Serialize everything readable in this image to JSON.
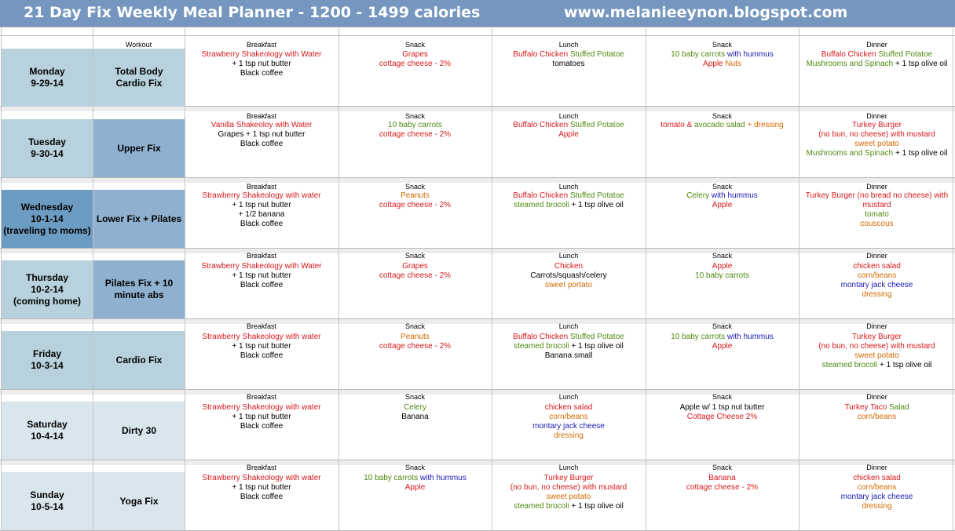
{
  "banner": {
    "title": "21 Day Fix Weekly Meal Planner - 1200 - 1499 calories",
    "url": "www.melanieeynon.blogspot.com"
  },
  "labels": {
    "workout": "Workout",
    "breakfast": "Breakfast",
    "snack": "Snack",
    "lunch": "Lunch",
    "dinner": "Dinner"
  },
  "colors": {
    "banner": "#7597bf",
    "red": "#d7191c",
    "green": "#4f8a10",
    "blue": "#1a1ab5",
    "orange": "#d46a00"
  },
  "days": [
    {
      "day": [
        "Monday",
        "9-29-14"
      ],
      "workout": [
        "Total Body",
        "Cardio Fix"
      ],
      "day_bg": "#b7d2dc",
      "workout_bg": "#b7d2dc",
      "breakfast": [
        [
          [
            "Strawberry Shakeology with Water",
            "r"
          ]
        ],
        [
          [
            "+ 1 tsp nut butter",
            "k"
          ]
        ],
        [
          [
            "Black coffee",
            "k"
          ]
        ]
      ],
      "snack1": [
        [
          [
            "Grapes",
            "r"
          ]
        ],
        [
          [
            "cottage cheese - 2%",
            "r"
          ]
        ]
      ],
      "lunch": [
        [
          [
            "Buffalo Chicken ",
            "r"
          ],
          [
            "Stuffed Potatoe",
            "g"
          ]
        ],
        [
          [
            "tomatoes",
            "k"
          ]
        ]
      ],
      "snack2": [
        [
          [
            "10 baby carrots ",
            "g"
          ],
          [
            "with hummus",
            "b"
          ]
        ],
        [
          [
            "Apple  ",
            "r"
          ],
          [
            "Nuts",
            "o"
          ]
        ]
      ],
      "dinner": [
        [
          [
            "Buffalo Chicken ",
            "r"
          ],
          [
            "Stuffed Potatoe",
            "g"
          ]
        ],
        [
          [
            "Mushrooms and Spinach",
            "g"
          ],
          [
            " + 1 tsp olive oil",
            "k"
          ]
        ]
      ]
    },
    {
      "day": [
        "Tuesday",
        "9-30-14"
      ],
      "workout": [
        "Upper Fix"
      ],
      "day_bg": "#b7d2dc",
      "workout_bg": "#8fb1cf",
      "breakfast": [
        [
          [
            "Vanilla Shakeoloy with Water",
            "r"
          ]
        ],
        [
          [
            "Grapes + 1 tsp nut butter",
            "k"
          ]
        ],
        [
          [
            "Black coffee",
            "k"
          ]
        ]
      ],
      "snack1": [
        [
          [
            "10 baby carrots",
            "g"
          ]
        ],
        [
          [
            "cottage cheese - 2%",
            "r"
          ]
        ]
      ],
      "lunch": [
        [
          [
            "Buffalo Chicken ",
            "r"
          ],
          [
            "Stuffed Potatoe",
            "g"
          ]
        ],
        [
          [
            "Apple",
            "r"
          ]
        ]
      ],
      "snack2": [
        [
          [
            "tomato & ",
            "r"
          ],
          [
            "avocado salad",
            "g"
          ],
          [
            "  + dressing",
            "o"
          ]
        ]
      ],
      "dinner": [
        [
          [
            "Turkey Burger",
            "r"
          ]
        ],
        [
          [
            "(no bun, no cheese) with mustard",
            "r"
          ]
        ],
        [
          [
            "sweet potato",
            "o"
          ]
        ],
        [
          [
            "Mushrooms and Spinach",
            "g"
          ],
          [
            "  + 1 tsp olive oil",
            "k"
          ]
        ]
      ]
    },
    {
      "day": [
        "Wednesday",
        "10-1-14",
        "(traveling to moms)"
      ],
      "workout": [
        "Lower Fix + Pilates"
      ],
      "day_bg": "#6d9cc3",
      "workout_bg": "#8fb1cf",
      "breakfast": [
        [
          [
            "Strawberry Shakeology with  water",
            "r"
          ]
        ],
        [
          [
            "+ 1 tsp nut butter",
            "k"
          ]
        ],
        [
          [
            "+ 1/2 banana",
            "k"
          ]
        ],
        [
          [
            "Black coffee",
            "k"
          ]
        ]
      ],
      "snack1": [
        [
          [
            "Peanuts",
            "o"
          ]
        ],
        [
          [
            "cottage cheese - 2%",
            "r"
          ]
        ]
      ],
      "lunch": [
        [
          [
            "Buffalo Chicken ",
            "r"
          ],
          [
            "Stuffed Potatoe",
            "g"
          ]
        ],
        [
          [
            "steamed brocoli",
            "g"
          ],
          [
            " + 1 tsp olive oil",
            "k"
          ]
        ]
      ],
      "snack2": [
        [
          [
            "Celery ",
            "g"
          ],
          [
            "with hummus",
            "b"
          ]
        ],
        [
          [
            "Apple",
            "r"
          ]
        ]
      ],
      "dinner": [
        [
          [
            "Turkey Burger (no bread no cheese) with",
            "r"
          ]
        ],
        [
          [
            "mustard",
            "r"
          ]
        ],
        [
          [
            "tomato",
            "g"
          ]
        ],
        [
          [
            "couscous",
            "o"
          ]
        ]
      ]
    },
    {
      "day": [
        "Thursday",
        "10-2-14",
        "(coming home)"
      ],
      "workout": [
        "Pilates Fix + 10",
        "minute abs"
      ],
      "day_bg": "#b7d2dc",
      "workout_bg": "#8fb1cf",
      "breakfast": [
        [
          [
            "Strawberry Shakeology with Water",
            "r"
          ]
        ],
        [
          [
            "+ 1 tsp nut butter",
            "k"
          ]
        ],
        [
          [
            "Black coffee",
            "k"
          ]
        ]
      ],
      "snack1": [
        [
          [
            "Grapes",
            "r"
          ]
        ],
        [
          [
            "cottage cheese - 2%",
            "r"
          ]
        ]
      ],
      "lunch": [
        [
          [
            "Chicken",
            "r"
          ]
        ],
        [
          [
            "Carrots/squash/celery",
            "k"
          ]
        ],
        [
          [
            "sweet portato",
            "o"
          ]
        ]
      ],
      "snack2": [
        [
          [
            "Apple",
            "r"
          ]
        ],
        [
          [
            "10 baby carrots",
            "g"
          ]
        ]
      ],
      "dinner": [
        [
          [
            "chicken salad",
            "r"
          ]
        ],
        [
          [
            "corn/beans",
            "o"
          ]
        ],
        [
          [
            "montary jack cheese",
            "b"
          ]
        ],
        [
          [
            "dressing",
            "o"
          ]
        ]
      ]
    },
    {
      "day": [
        "Friday",
        "10-3-14"
      ],
      "workout": [
        "Cardio Fix"
      ],
      "day_bg": "#b7d2dc",
      "workout_bg": "#b7d2dc",
      "breakfast": [
        [
          [
            "Strawberry Shakeology with  water",
            "r"
          ]
        ],
        [
          [
            "+ 1 tsp nut butter",
            "k"
          ]
        ],
        [
          [
            "Black coffee",
            "k"
          ]
        ]
      ],
      "snack1": [
        [
          [
            "Peanuts",
            "o"
          ]
        ],
        [
          [
            "cottage cheese - 2%",
            "r"
          ]
        ]
      ],
      "lunch": [
        [
          [
            "Buffalo Chicken ",
            "r"
          ],
          [
            "Stuffed Potatoe",
            "g"
          ]
        ],
        [
          [
            "steamed brocoli",
            "g"
          ],
          [
            " + 1 tsp olive oil",
            "k"
          ]
        ],
        [
          [
            "Banana small",
            "k"
          ]
        ]
      ],
      "snack2": [
        [
          [
            "10 baby carrots ",
            "g"
          ],
          [
            "with hummus",
            "b"
          ]
        ],
        [
          [
            "Apple",
            "r"
          ]
        ]
      ],
      "dinner": [
        [
          [
            "Turkey Burger",
            "r"
          ]
        ],
        [
          [
            "(no bun, no cheese) with mustard",
            "r"
          ]
        ],
        [
          [
            "sweet potato",
            "o"
          ]
        ],
        [
          [
            "steamed brocoli",
            "g"
          ],
          [
            " + 1 tsp olive oil",
            "k"
          ]
        ]
      ]
    },
    {
      "day": [
        "Saturday",
        "10-4-14"
      ],
      "workout": [
        "Dirty 30"
      ],
      "day_bg": "#dae6ee",
      "workout_bg": "#dae6ee",
      "breakfast": [
        [
          [
            "Strawberry Shakeology with  water",
            "r"
          ]
        ],
        [
          [
            "+ 1 tsp nut butter",
            "k"
          ]
        ],
        [
          [
            "Black coffee",
            "k"
          ]
        ]
      ],
      "snack1": [
        [
          [
            "Celery",
            "g"
          ]
        ],
        [
          [
            "Banana",
            "k"
          ]
        ]
      ],
      "lunch": [
        [
          [
            "chicken salad",
            "r"
          ]
        ],
        [
          [
            "corn/beans",
            "o"
          ]
        ],
        [
          [
            "montary jack cheese",
            "b"
          ]
        ],
        [
          [
            "dressing",
            "o"
          ]
        ]
      ],
      "snack2": [
        [
          [
            "Apple  w/ 1 tsp nut butter",
            "k"
          ]
        ],
        [
          [
            "Cottage Cheese 2%",
            "r"
          ]
        ]
      ],
      "dinner": [
        [
          [
            "Turkey Taco ",
            "r"
          ],
          [
            "Salad",
            "g"
          ]
        ],
        [
          [
            "corn/beans",
            "o"
          ]
        ]
      ]
    },
    {
      "day": [
        "Sunday",
        "10-5-14"
      ],
      "workout": [
        "Yoga Fix"
      ],
      "day_bg": "#dae6ee",
      "workout_bg": "#dae6ee",
      "breakfast": [
        [
          [
            "Strawberry Shakeology with  water",
            "r"
          ]
        ],
        [
          [
            "+ 1 tsp nut butter",
            "k"
          ]
        ],
        [
          [
            "Black coffee",
            "k"
          ]
        ]
      ],
      "snack1": [
        [
          [
            "10 baby carrots ",
            "g"
          ],
          [
            "with hummus",
            "b"
          ]
        ],
        [
          [
            "Apple",
            "r"
          ]
        ]
      ],
      "lunch": [
        [
          [
            "Turkey Burger",
            "r"
          ]
        ],
        [
          [
            "(no bun, no cheese) with mustard",
            "r"
          ]
        ],
        [
          [
            "sweet potato",
            "o"
          ]
        ],
        [
          [
            "steamed brocoli",
            "g"
          ],
          [
            " + 1 tsp olive oil",
            "k"
          ]
        ]
      ],
      "snack2": [
        [
          [
            "Banana",
            "r"
          ]
        ],
        [
          [
            "cottage cheese - 2%",
            "r"
          ]
        ]
      ],
      "dinner": [
        [
          [
            "chicken salad",
            "r"
          ]
        ],
        [
          [
            "corn/beans",
            "o"
          ]
        ],
        [
          [
            "montary jack cheese",
            "b"
          ]
        ],
        [
          [
            "dressing",
            "o"
          ]
        ]
      ]
    }
  ]
}
